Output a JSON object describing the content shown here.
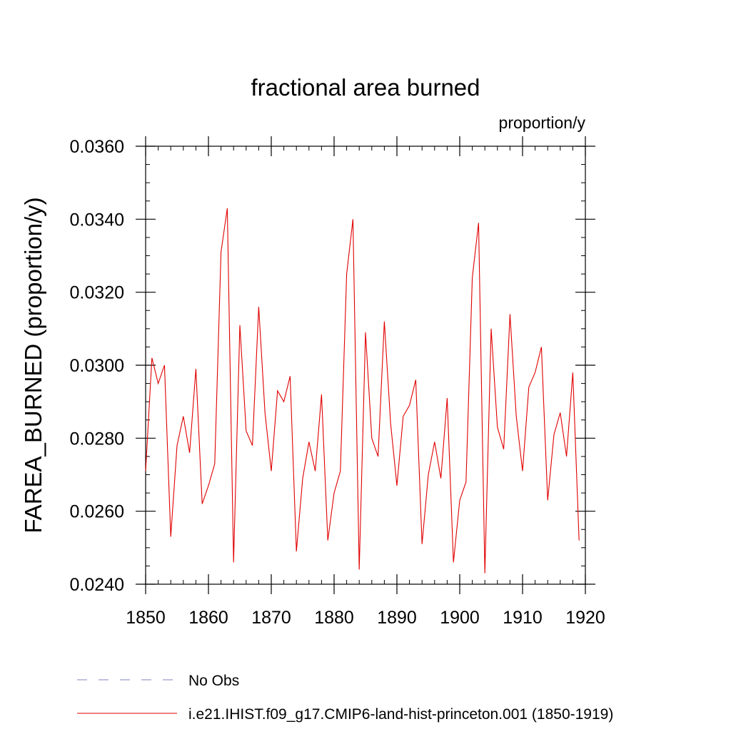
{
  "chart_data": {
    "type": "line",
    "title": "fractional area burned",
    "units": "proportion/y",
    "ylabel": "FAREA_BURNED  (proportion/y)",
    "xlabel": "",
    "xlim": [
      1850,
      1920
    ],
    "ylim": [
      0.024,
      0.036
    ],
    "x_ticks": [
      1850,
      1860,
      1870,
      1880,
      1890,
      1900,
      1910,
      1920
    ],
    "x_tick_labels": [
      "1850",
      "1860",
      "1870",
      "1880",
      "1890",
      "1900",
      "1910",
      "1920"
    ],
    "y_ticks": [
      0.024,
      0.026,
      0.028,
      0.03,
      0.032,
      0.034,
      0.036
    ],
    "y_tick_labels": [
      "0.0240",
      "0.0260",
      "0.0280",
      "0.0300",
      "0.0320",
      "0.0340",
      "0.0360"
    ],
    "grid": false,
    "legend_position": "bottom-left",
    "series": [
      {
        "name": "No Obs",
        "color": "#8080c0",
        "style": "dashed",
        "x": [],
        "values": []
      },
      {
        "name": "i.e21.IHIST.f09_g17.CMIP6-land-hist-princeton.001 (1850-1919)",
        "color": "#e00000",
        "style": "solid",
        "x": [
          1850,
          1851,
          1852,
          1853,
          1854,
          1855,
          1856,
          1857,
          1858,
          1859,
          1860,
          1861,
          1862,
          1863,
          1864,
          1865,
          1866,
          1867,
          1868,
          1869,
          1870,
          1871,
          1872,
          1873,
          1874,
          1875,
          1876,
          1877,
          1878,
          1879,
          1880,
          1881,
          1882,
          1883,
          1884,
          1885,
          1886,
          1887,
          1888,
          1889,
          1890,
          1891,
          1892,
          1893,
          1894,
          1895,
          1896,
          1897,
          1898,
          1899,
          1900,
          1901,
          1902,
          1903,
          1904,
          1905,
          1906,
          1907,
          1908,
          1909,
          1910,
          1911,
          1912,
          1913,
          1914,
          1915,
          1916,
          1917,
          1918,
          1919
        ],
        "values": [
          0.0271,
          0.0302,
          0.0295,
          0.03,
          0.0253,
          0.0278,
          0.0286,
          0.0276,
          0.0299,
          0.0262,
          0.0267,
          0.0273,
          0.0331,
          0.0343,
          0.0246,
          0.0311,
          0.0282,
          0.0278,
          0.0316,
          0.0287,
          0.0271,
          0.0293,
          0.029,
          0.0297,
          0.0249,
          0.0269,
          0.0279,
          0.0271,
          0.0292,
          0.0252,
          0.0265,
          0.0271,
          0.0325,
          0.034,
          0.0244,
          0.0309,
          0.028,
          0.0275,
          0.0312,
          0.0284,
          0.0267,
          0.0286,
          0.0289,
          0.0296,
          0.0251,
          0.027,
          0.0279,
          0.0269,
          0.0291,
          0.0246,
          0.0263,
          0.0268,
          0.0324,
          0.0339,
          0.0243,
          0.031,
          0.0283,
          0.0277,
          0.0314,
          0.0286,
          0.0271,
          0.0294,
          0.0298,
          0.0305,
          0.0263,
          0.0281,
          0.0287,
          0.0275,
          0.0298,
          0.0252
        ]
      }
    ]
  }
}
